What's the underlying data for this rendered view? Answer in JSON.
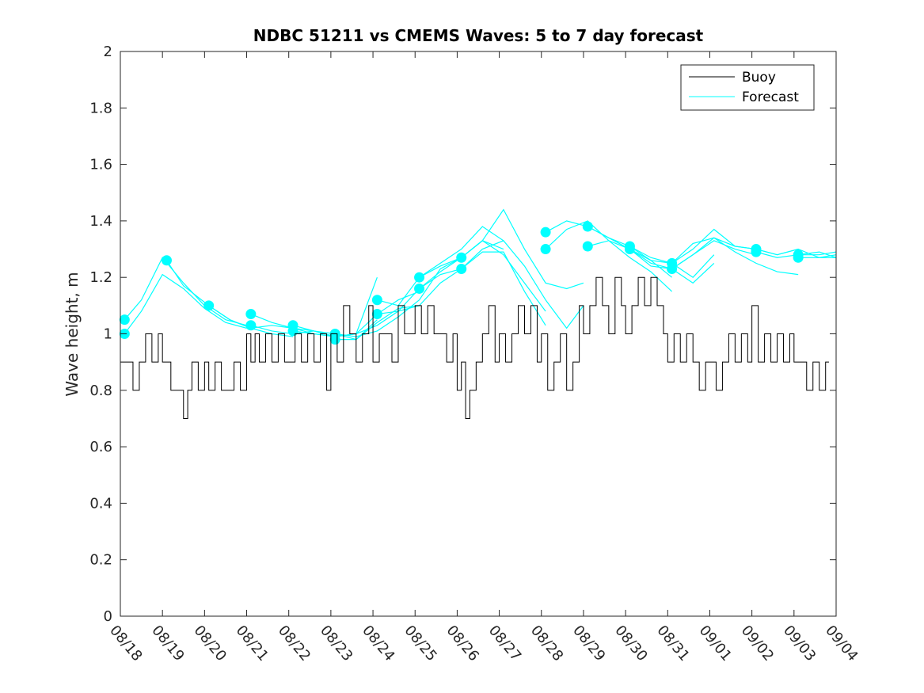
{
  "chart_data": {
    "type": "line",
    "title": "NDBC 51211 vs CMEMS Waves: 5 to 7 day forecast",
    "xlabel": "",
    "ylabel": "Wave height, m",
    "xlim": [
      0,
      17
    ],
    "ylim": [
      0,
      2
    ],
    "x_tick_values": [
      0,
      1,
      2,
      3,
      4,
      5,
      6,
      7,
      8,
      9,
      10,
      11,
      12,
      13,
      14,
      15,
      16,
      17
    ],
    "x_tick_labels": [
      "08/18",
      "08/19",
      "08/20",
      "08/21",
      "08/22",
      "08/23",
      "08/24",
      "08/25",
      "08/26",
      "08/27",
      "08/28",
      "08/29",
      "08/30",
      "08/31",
      "09/01",
      "09/02",
      "09/03",
      "09/04"
    ],
    "y_ticks": [
      0,
      0.2,
      0.4,
      0.6,
      0.8,
      1,
      1.2,
      1.4,
      1.6,
      1.8,
      2
    ],
    "y_tick_labels": [
      "0",
      "0.2",
      "0.4",
      "0.6",
      "0.8",
      "1",
      "1.2",
      "1.4",
      "1.6",
      "1.8",
      "2"
    ],
    "legend": {
      "position": "top-right",
      "entries": [
        {
          "label": "Buoy",
          "color": "#000000"
        },
        {
          "label": "Forecast",
          "color": "#00FFFF"
        }
      ]
    },
    "buoy_color": "#000000",
    "forecast_color": "#00FFFF",
    "buoy": {
      "name": "Buoy",
      "x": [
        0,
        0.3,
        0.45,
        0.6,
        0.75,
        0.9,
        1.0,
        1.2,
        1.35,
        1.5,
        1.6,
        1.7,
        1.85,
        2.0,
        2.1,
        2.25,
        2.4,
        2.55,
        2.7,
        2.85,
        3.0,
        3.1,
        3.2,
        3.3,
        3.45,
        3.6,
        3.75,
        3.9,
        4.0,
        4.15,
        4.3,
        4.45,
        4.6,
        4.75,
        4.9,
        5.0,
        5.15,
        5.3,
        5.45,
        5.6,
        5.75,
        5.9,
        6.0,
        6.15,
        6.3,
        6.45,
        6.6,
        6.75,
        6.9,
        7.0,
        7.15,
        7.3,
        7.45,
        7.6,
        7.75,
        7.9,
        8.0,
        8.1,
        8.2,
        8.3,
        8.45,
        8.6,
        8.75,
        8.9,
        9.0,
        9.15,
        9.3,
        9.45,
        9.6,
        9.75,
        9.9,
        10.0,
        10.15,
        10.3,
        10.45,
        10.6,
        10.75,
        10.9,
        11.0,
        11.15,
        11.3,
        11.45,
        11.6,
        11.75,
        11.9,
        12.0,
        12.15,
        12.3,
        12.45,
        12.6,
        12.75,
        12.9,
        13.0,
        13.15,
        13.3,
        13.45,
        13.6,
        13.75,
        13.9,
        14.0,
        14.15,
        14.3,
        14.45,
        14.6,
        14.75,
        14.9,
        15.0,
        15.15,
        15.3,
        15.45,
        15.6,
        15.75,
        15.9,
        16.0,
        16.15,
        16.3,
        16.45,
        16.6,
        16.75
      ],
      "values": [
        0.9,
        0.8,
        0.9,
        1.0,
        0.9,
        1.0,
        0.9,
        0.8,
        0.8,
        0.7,
        0.8,
        0.9,
        0.8,
        0.9,
        0.8,
        0.9,
        0.8,
        0.8,
        0.9,
        0.8,
        1.0,
        0.9,
        1.0,
        0.9,
        1.0,
        0.9,
        1.0,
        0.9,
        0.9,
        1.0,
        0.9,
        1.0,
        0.9,
        1.0,
        0.8,
        1.0,
        0.9,
        1.1,
        1.0,
        0.9,
        1.0,
        1.1,
        0.9,
        1.0,
        1.0,
        0.9,
        1.1,
        1.0,
        1.0,
        1.1,
        1.0,
        1.1,
        1.0,
        1.0,
        0.9,
        1.0,
        0.8,
        0.9,
        0.7,
        0.8,
        0.9,
        1.0,
        1.1,
        0.9,
        1.0,
        0.9,
        1.0,
        1.1,
        1.0,
        1.1,
        0.9,
        1.0,
        0.8,
        0.9,
        1.0,
        0.8,
        0.9,
        1.1,
        1.0,
        1.1,
        1.2,
        1.1,
        1.0,
        1.2,
        1.1,
        1.0,
        1.1,
        1.2,
        1.1,
        1.2,
        1.1,
        1.0,
        0.9,
        1.0,
        0.9,
        1.0,
        0.9,
        0.8,
        0.9,
        0.9,
        0.8,
        0.9,
        1.0,
        0.9,
        1.0,
        0.9,
        1.1,
        0.9,
        1.0,
        0.9,
        1.0,
        0.9,
        1.0,
        0.9,
        0.9,
        0.8,
        0.9,
        0.8,
        0.9
      ]
    },
    "forecasts": [
      {
        "x": [
          0.1,
          0.5,
          1.0,
          1.5,
          2.0,
          2.5,
          3.0
        ],
        "values": [
          1.05,
          1.12,
          1.27,
          1.18,
          1.1,
          1.05,
          1.03
        ]
      },
      {
        "x": [
          0.1,
          0.5,
          1.0,
          1.5,
          2.0,
          2.5,
          3.0
        ],
        "values": [
          1.0,
          1.08,
          1.21,
          1.16,
          1.09,
          1.04,
          1.02
        ]
      },
      {
        "x": [
          1.1,
          1.5,
          2.1,
          2.6,
          3.1,
          3.6,
          4.1
        ],
        "values": [
          1.26,
          1.17,
          1.1,
          1.05,
          1.02,
          1.0,
          0.99
        ]
      },
      {
        "x": [
          2.1,
          2.6,
          3.1,
          3.6,
          4.1,
          4.6,
          5.1
        ],
        "values": [
          1.1,
          1.05,
          1.02,
          1.03,
          1.02,
          1.01,
          0.99
        ]
      },
      {
        "x": [
          3.1,
          3.6,
          4.1,
          4.6,
          5.1,
          5.6,
          6.1
        ],
        "values": [
          1.07,
          1.04,
          1.02,
          1.0,
          0.99,
          1.0,
          1.2
        ]
      },
      {
        "x": [
          3.1,
          3.6,
          4.1,
          4.6,
          5.1,
          5.6,
          6.1
        ],
        "values": [
          1.03,
          1.01,
          1.0,
          1.01,
          1.0,
          0.98,
          1.05
        ]
      },
      {
        "x": [
          4.1,
          4.6,
          5.1,
          5.6,
          6.1,
          6.6,
          7.1
        ],
        "values": [
          1.03,
          1.01,
          0.99,
          1.0,
          1.07,
          1.12,
          1.15
        ]
      },
      {
        "x": [
          4.1,
          4.6,
          5.1,
          5.6,
          6.1,
          6.6,
          7.1
        ],
        "values": [
          1.01,
          1.0,
          0.99,
          1.0,
          1.03,
          1.08,
          1.1
        ]
      },
      {
        "x": [
          5.1,
          5.6,
          6.1,
          6.6,
          7.1,
          7.6,
          8.1
        ],
        "values": [
          1.0,
          0.99,
          1.01,
          1.06,
          1.12,
          1.23,
          1.27
        ]
      },
      {
        "x": [
          5.1,
          5.6,
          6.1,
          6.6,
          7.1,
          7.6,
          8.1
        ],
        "values": [
          0.98,
          0.98,
          1.04,
          1.09,
          1.1,
          1.18,
          1.23
        ]
      },
      {
        "x": [
          6.1,
          6.6,
          7.1,
          7.6,
          8.1,
          8.6,
          9.1
        ],
        "values": [
          1.12,
          1.1,
          1.2,
          1.25,
          1.3,
          1.38,
          1.33
        ]
      },
      {
        "x": [
          6.1,
          6.6,
          7.1,
          7.6,
          8.1,
          8.6,
          9.1
        ],
        "values": [
          1.07,
          1.08,
          1.16,
          1.22,
          1.27,
          1.33,
          1.3
        ]
      },
      {
        "x": [
          7.1,
          7.6,
          8.1,
          8.6,
          9.1,
          9.6,
          10.1
        ],
        "values": [
          1.2,
          1.24,
          1.27,
          1.33,
          1.28,
          1.18,
          1.08
        ]
      },
      {
        "x": [
          7.1,
          7.6,
          8.1,
          8.6,
          9.1,
          9.6,
          10.1
        ],
        "values": [
          1.16,
          1.21,
          1.23,
          1.29,
          1.29,
          1.15,
          1.03
        ]
      },
      {
        "x": [
          8.1,
          8.6,
          9.1,
          9.6,
          10.1,
          10.6,
          11.0
        ],
        "values": [
          1.27,
          1.33,
          1.44,
          1.3,
          1.18,
          1.16,
          1.18
        ]
      },
      {
        "x": [
          8.1,
          8.6,
          9.1,
          9.6,
          10.1,
          10.6,
          11.0
        ],
        "values": [
          1.23,
          1.3,
          1.33,
          1.24,
          1.12,
          1.02,
          1.1
        ]
      },
      {
        "x": [
          10.1,
          10.6,
          11.1,
          11.6,
          12.1,
          12.6,
          13.1
        ],
        "values": [
          1.36,
          1.4,
          1.38,
          1.34,
          1.3,
          1.26,
          1.2
        ]
      },
      {
        "x": [
          10.1,
          10.6,
          11.1,
          11.6,
          12.1,
          12.6,
          13.1
        ],
        "values": [
          1.3,
          1.37,
          1.4,
          1.33,
          1.27,
          1.22,
          1.15
        ]
      },
      {
        "x": [
          11.1,
          11.6,
          12.1,
          12.6,
          13.1,
          13.6,
          14.1
        ],
        "values": [
          1.38,
          1.34,
          1.31,
          1.26,
          1.25,
          1.2,
          1.28
        ]
      },
      {
        "x": [
          11.1,
          11.6,
          12.1,
          12.6,
          13.1,
          13.6,
          14.1
        ],
        "values": [
          1.31,
          1.33,
          1.3,
          1.24,
          1.23,
          1.18,
          1.25
        ]
      },
      {
        "x": [
          12.1,
          12.6,
          13.1,
          13.6,
          14.1,
          14.6,
          15.1
        ],
        "values": [
          1.31,
          1.27,
          1.25,
          1.32,
          1.34,
          1.31,
          1.3
        ]
      },
      {
        "x": [
          12.1,
          12.6,
          13.1,
          13.6,
          14.1,
          14.6,
          15.1
        ],
        "values": [
          1.3,
          1.25,
          1.23,
          1.28,
          1.33,
          1.3,
          1.28
        ]
      },
      {
        "x": [
          13.1,
          13.6,
          14.1,
          14.6,
          15.1,
          15.6,
          16.1
        ],
        "values": [
          1.25,
          1.3,
          1.37,
          1.31,
          1.3,
          1.28,
          1.3
        ]
      },
      {
        "x": [
          13.1,
          13.6,
          14.1,
          14.6,
          15.1,
          15.6,
          16.1
        ],
        "values": [
          1.23,
          1.28,
          1.34,
          1.29,
          1.25,
          1.22,
          1.21
        ]
      },
      {
        "x": [
          15.1,
          15.6,
          16.1,
          16.6,
          17.0
        ],
        "values": [
          1.3,
          1.28,
          1.3,
          1.27,
          1.28
        ]
      },
      {
        "x": [
          15.1,
          15.6,
          16.1,
          16.6,
          17.0
        ],
        "values": [
          1.29,
          1.27,
          1.28,
          1.29,
          1.27
        ]
      },
      {
        "x": [
          16.1,
          16.6,
          17.0
        ],
        "values": [
          1.28,
          1.28,
          1.29
        ]
      },
      {
        "x": [
          16.1,
          16.6,
          17.0
        ],
        "values": [
          1.27,
          1.27,
          1.27
        ]
      }
    ]
  }
}
